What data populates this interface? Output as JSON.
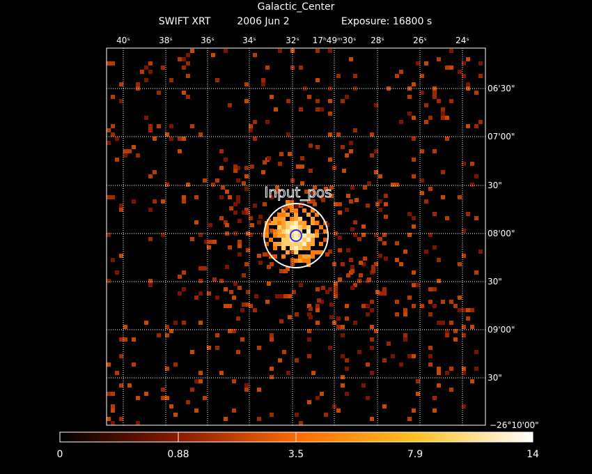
{
  "header": {
    "title": "Galactic_Center",
    "instrument": "SWIFT XRT",
    "date": "2006 Jun  2",
    "exposure": "Exposure: 16800 s"
  },
  "ra_labels": [
    "40ˢ",
    "38ˢ",
    "36ˢ",
    "34ˢ",
    "32ˢ",
    "17ʰ49ᵐ30ˢ",
    "28ˢ",
    "26ˢ",
    "24ˢ"
  ],
  "dec_labels": [
    "06'30\"",
    "07'00\"",
    "30\"",
    "08'00\"",
    "30\"",
    "09'00\"",
    "30\"",
    "−26°10'00\""
  ],
  "source_label": "Input_pos",
  "colorbar": {
    "labels": [
      "0",
      "0.88",
      "3.5",
      "7.9",
      "14"
    ]
  }
}
